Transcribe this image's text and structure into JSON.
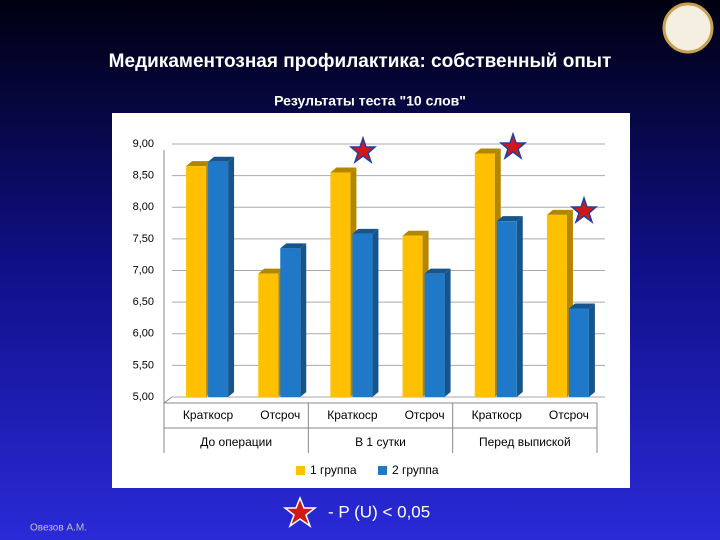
{
  "title": "Медикаментозная профилактика: собственный опыт",
  "footer": "Овезов А.М.",
  "note": "- P (U) < 0,05",
  "chart_data": {
    "type": "bar",
    "title": "Результаты теста \"10 слов\"",
    "categories": [
      "Краткоср",
      "Отсроч",
      "Краткоср",
      "Отсроч",
      "Краткоср",
      "Отсроч"
    ],
    "groups": [
      "До операции",
      "В 1 сутки",
      "Перед выпиской"
    ],
    "series": [
      {
        "name": "1 группа",
        "color": "#ffc000",
        "values": [
          8.65,
          6.95,
          8.55,
          7.55,
          8.85,
          7.88
        ]
      },
      {
        "name": "2 группа",
        "color": "#1f78c8",
        "values": [
          8.72,
          7.35,
          7.58,
          6.95,
          7.78,
          6.4
        ]
      }
    ],
    "ylim": [
      5,
      9
    ],
    "yticks": [
      {
        "value": 5,
        "label": "5,00"
      },
      {
        "value": 5.5,
        "label": "5,50"
      },
      {
        "value": 6,
        "label": "6,00"
      },
      {
        "value": 6.5,
        "label": "6,50"
      },
      {
        "value": 7,
        "label": "7,00"
      },
      {
        "value": 7.5,
        "label": "7,50"
      },
      {
        "value": 8,
        "label": "8,00"
      },
      {
        "value": 8.5,
        "label": "8,50"
      },
      {
        "value": 9,
        "label": "9,00"
      }
    ],
    "grid": true,
    "legend": "bottom"
  }
}
